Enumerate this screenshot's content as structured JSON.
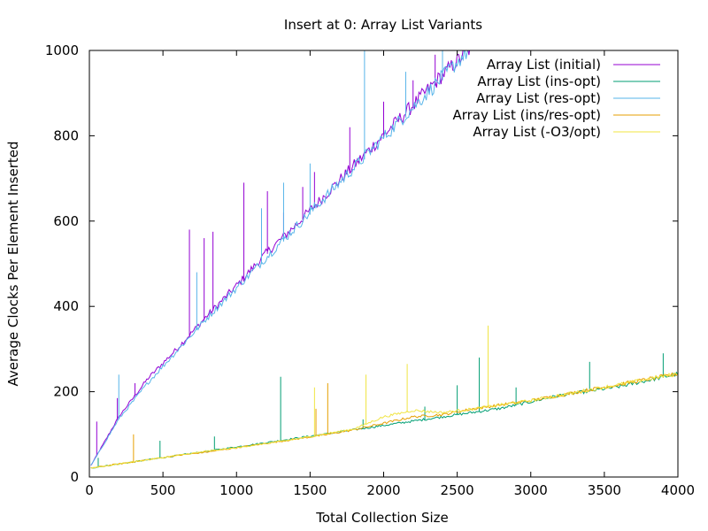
{
  "chart_data": {
    "type": "line",
    "title": "Insert at 0:  Array List Variants",
    "xlabel": "Total Collection Size",
    "ylabel": "Average Clocks Per Element Inserted",
    "xlim": [
      0,
      4000
    ],
    "ylim": [
      0,
      1000
    ],
    "xticks": [
      0,
      500,
      1000,
      1500,
      2000,
      2500,
      3000,
      3500,
      4000
    ],
    "yticks": [
      0,
      200,
      400,
      600,
      800,
      1000
    ],
    "grid": false,
    "legend_position": "top-right",
    "x": [
      0,
      200,
      400,
      600,
      800,
      1000,
      1200,
      1400,
      1600,
      1800,
      2000,
      2200,
      2400,
      2600,
      2800,
      3000,
      3200,
      3400,
      3600,
      3800,
      4000
    ],
    "series": [
      {
        "name": "Array List (initial)",
        "color": "#9400d3",
        "values": [
          20,
          140,
          230,
          300,
          375,
          445,
          520,
          585,
          655,
          725,
          795,
          865,
          935,
          1000,
          null,
          null,
          null,
          null,
          null,
          null,
          null
        ],
        "spikes": [
          [
            50,
            130
          ],
          [
            190,
            185
          ],
          [
            310,
            220
          ],
          [
            680,
            580
          ],
          [
            780,
            560
          ],
          [
            840,
            575
          ],
          [
            1050,
            690
          ],
          [
            1210,
            670
          ],
          [
            1320,
            620
          ],
          [
            1450,
            680
          ],
          [
            1530,
            715
          ],
          [
            1770,
            820
          ],
          [
            2000,
            880
          ],
          [
            2200,
            930
          ],
          [
            2350,
            990
          ]
        ]
      },
      {
        "name": "Array List (ins-opt)",
        "color": "#009e73",
        "values": [
          20,
          30,
          40,
          50,
          60,
          70,
          80,
          90,
          100,
          110,
          120,
          130,
          140,
          150,
          160,
          175,
          190,
          200,
          210,
          225,
          240
        ],
        "spikes": [
          [
            60,
            45
          ],
          [
            480,
            85
          ],
          [
            850,
            95
          ],
          [
            1300,
            235
          ],
          [
            1860,
            135
          ],
          [
            2280,
            165
          ],
          [
            2500,
            215
          ],
          [
            2650,
            280
          ],
          [
            2900,
            210
          ],
          [
            3400,
            270
          ],
          [
            3900,
            290
          ]
        ]
      },
      {
        "name": "Array List (res-opt)",
        "color": "#56b4e9",
        "values": [
          20,
          135,
          220,
          295,
          370,
          440,
          510,
          580,
          650,
          720,
          790,
          860,
          930,
          1000,
          null,
          null,
          null,
          null,
          null,
          null,
          null
        ],
        "spikes": [
          [
            200,
            240
          ],
          [
            730,
            480
          ],
          [
            1170,
            630
          ],
          [
            1320,
            690
          ],
          [
            1500,
            735
          ],
          [
            1870,
            1000
          ],
          [
            2150,
            950
          ],
          [
            2400,
            1000
          ]
        ]
      },
      {
        "name": "Array List (ins/res-opt)",
        "color": "#e69f00",
        "values": [
          20,
          30,
          40,
          50,
          58,
          68,
          78,
          88,
          98,
          110,
          125,
          140,
          145,
          158,
          168,
          178,
          190,
          203,
          215,
          228,
          240
        ],
        "spikes": [
          [
            300,
            100
          ],
          [
            1540,
            160
          ],
          [
            1620,
            220
          ],
          [
            2400,
            150
          ]
        ]
      },
      {
        "name": "Array List (-O3/opt)",
        "color": "#f0e442",
        "values": [
          20,
          30,
          40,
          50,
          60,
          68,
          78,
          88,
          100,
          112,
          140,
          155,
          150,
          158,
          168,
          178,
          190,
          203,
          215,
          228,
          240
        ],
        "spikes": [
          [
            1530,
            210
          ],
          [
            1880,
            240
          ],
          [
            2160,
            265
          ],
          [
            2710,
            355
          ]
        ]
      }
    ]
  }
}
